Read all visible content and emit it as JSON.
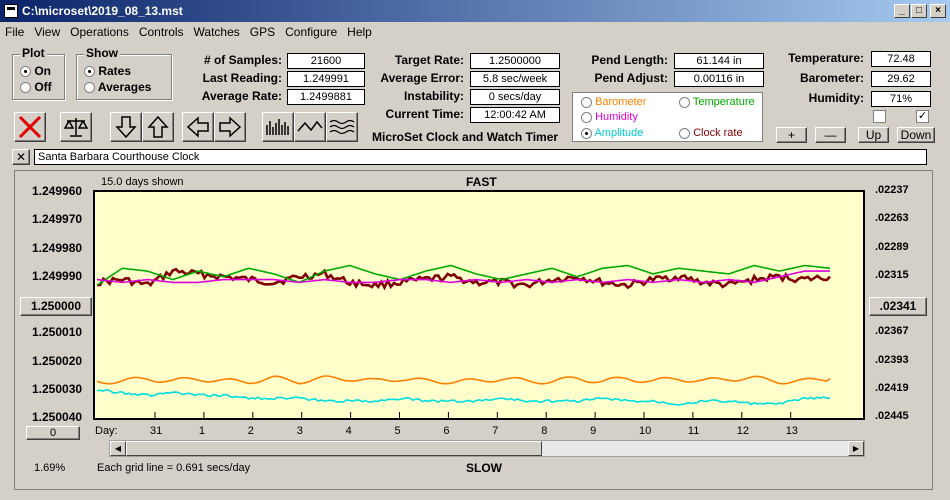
{
  "window": {
    "title": "C:\\microset\\2019_08_13.mst"
  },
  "menu": [
    "File",
    "View",
    "Operations",
    "Controls",
    "Watches",
    "GPS",
    "Configure",
    "Help"
  ],
  "plot_group": {
    "title": "Plot",
    "on": "On",
    "off": "Off",
    "selected": "On"
  },
  "show_group": {
    "title": "Show",
    "rates": "Rates",
    "averages": "Averages",
    "selected": "Rates"
  },
  "stats": {
    "samples_label": "# of Samples:",
    "samples": "21600",
    "last_label": "Last Reading:",
    "last": "1.249991",
    "avg_label": "Average Rate:",
    "avg": "1.2499881",
    "target_label": "Target Rate:",
    "target": "1.2500000",
    "error_label": "Average Error:",
    "error": "5.8 sec/week",
    "instab_label": "Instability:",
    "instab": "0 secs/day",
    "time_label": "Current Time:",
    "time": "12:00:42 AM",
    "pend_len_label": "Pend Length:",
    "pend_len": "61.144 in",
    "pend_adj_label": "Pend Adjust:",
    "pend_adj": "0.00116 in",
    "temp_label": "Temperature:",
    "temp": "72.48",
    "baro_label": "Barometer:",
    "baro": "29.62",
    "hum_label": "Humidity:",
    "hum": "71%"
  },
  "app_caption": "MicroSet Clock and Watch Timer",
  "legend": {
    "barometer": "Barometer",
    "temperature": "Temperature",
    "humidity": "Humidity",
    "amplitude": "Amplitude",
    "clock_rate": "Clock rate",
    "selected": "Amplitude"
  },
  "adjust_buttons": {
    "plus": "+",
    "minus": "—",
    "up": "Up",
    "down": "Down"
  },
  "clock_name": "Santa Barbara Courthouse Clock",
  "chart_header": {
    "days_shown": "15.0 days shown",
    "fast": "FAST",
    "slow": "SLOW",
    "grid_note": "Each grid line = 0.691 secs/day",
    "percent": "1.69%",
    "day_label": "Day:"
  },
  "center_button": "1.250000",
  "right_center_button": ".02341",
  "bottom_left_button": "0",
  "colors": {
    "barometer": "#ff8000",
    "temperature": "#00aa00",
    "humidity": "#dd00dd",
    "amplitude": "#00dddd",
    "clock_rate": "#800000"
  },
  "chart_data": {
    "type": "line",
    "left_axis_ticks": [
      "1.249960",
      "1.249970",
      "1.249980",
      "1.249990",
      "1.250000",
      "1.250010",
      "1.250020",
      "1.250030",
      "1.250040"
    ],
    "right_axis_ticks": [
      ".02237",
      ".02263",
      ".02289",
      ".02315",
      ".02341",
      ".02367",
      ".02393",
      ".02419",
      ".02445"
    ],
    "day_ticks": [
      "31",
      "1",
      "2",
      "3",
      "4",
      "5",
      "6",
      "7",
      "8",
      "9",
      "10",
      "11",
      "12",
      "13"
    ],
    "series": [
      {
        "name": "Clock rate",
        "color": "#800000",
        "values": [
          1.249992,
          1.249991,
          1.249993,
          1.249988,
          1.249989,
          1.24999,
          1.249991,
          1.249992,
          1.24999,
          1.249989,
          1.249992,
          1.249993,
          1.249992,
          1.249991,
          1.24999,
          1.249992,
          1.249992,
          1.249993,
          1.249991,
          1.24999,
          1.249992,
          1.249993,
          1.249991,
          1.24999,
          1.249992,
          1.249993,
          1.249991,
          1.24999,
          1.249991,
          1.24999
        ]
      },
      {
        "name": "Temperature",
        "color": "#00aa00",
        "values": [
          1.249993,
          1.249987,
          1.249988,
          1.249991,
          1.249988,
          1.24999,
          1.249987,
          1.249989,
          1.249992,
          1.249988,
          1.249986,
          1.249989,
          1.249991,
          1.249988,
          1.249986,
          1.249989,
          1.249991,
          1.249989,
          1.249987,
          1.24999,
          1.249987,
          1.249986,
          1.249989,
          1.249987,
          1.249988,
          1.249989,
          1.249986,
          1.249988,
          1.249986,
          1.249987
        ]
      },
      {
        "name": "Humidity",
        "color": "#dd00dd",
        "values": [
          1.249991,
          1.249992,
          1.249991,
          1.249992,
          1.249992,
          1.249991,
          1.249991,
          1.249991,
          1.249992,
          1.249991,
          1.249992,
          1.249992,
          1.249991,
          1.249991,
          1.249992,
          1.249991,
          1.249992,
          1.249991,
          1.249992,
          1.249991,
          1.249992,
          1.249991,
          1.249992,
          1.249991,
          1.249992,
          1.249991,
          1.249992,
          1.24999,
          1.249988,
          1.249988
        ]
      },
      {
        "name": "Barometer",
        "color": "#ff8000",
        "values": [
          1.250027,
          1.250027,
          1.250026,
          1.250027,
          1.250026,
          1.250027,
          1.250027,
          1.250026,
          1.250027,
          1.250026,
          1.250026,
          1.250027,
          1.250026,
          1.250027,
          1.250027,
          1.250027,
          1.250026,
          1.250027,
          1.250027,
          1.250026,
          1.250027,
          1.250026,
          1.250027,
          1.250026,
          1.250027,
          1.250026,
          1.250026,
          1.250027,
          1.250027,
          1.250026
        ]
      },
      {
        "name": "Amplitude",
        "color": "#00dddd",
        "values": [
          1.25003,
          1.250031,
          1.250032,
          1.250031,
          1.250032,
          1.250032,
          1.250033,
          1.250033,
          1.250033,
          1.250034,
          1.250034,
          1.250034,
          1.250033,
          1.250034,
          1.250034,
          1.250034,
          1.250033,
          1.250034,
          1.250034,
          1.250034,
          1.250033,
          1.250034,
          1.250034,
          1.250035,
          1.250034,
          1.250034,
          1.250035,
          1.250035,
          1.250033,
          1.250033
        ]
      }
    ],
    "ylim": [
      1.24996,
      1.25004
    ],
    "grid": false
  }
}
